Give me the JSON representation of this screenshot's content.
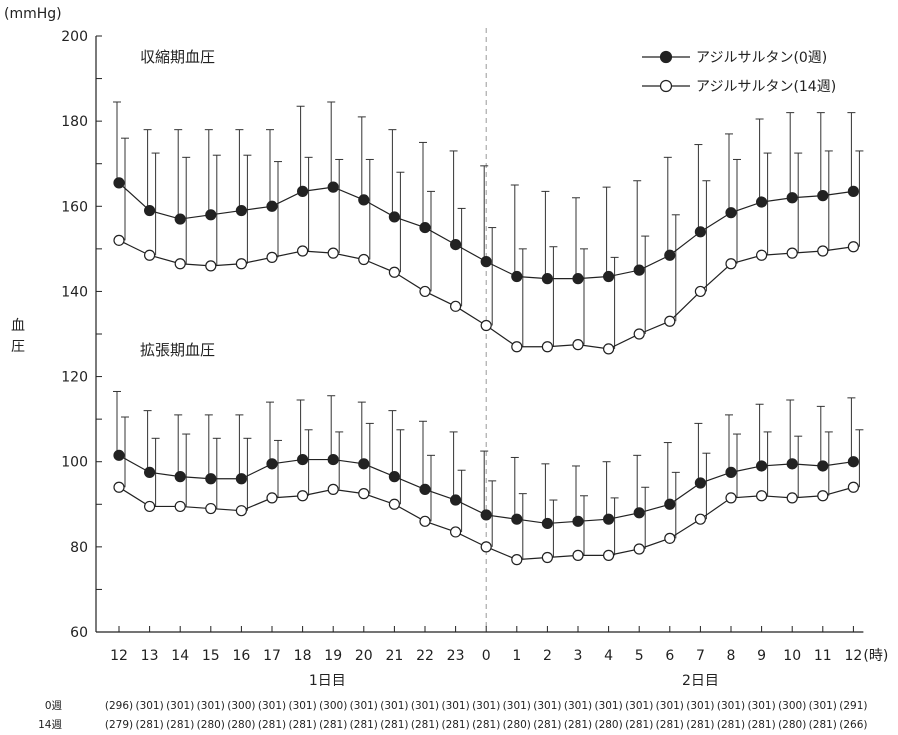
{
  "chart_data": {
    "type": "line",
    "y_unit": "(mmHg)",
    "ylabel": "血圧",
    "ylim": [
      60,
      200
    ],
    "yticks": [
      60,
      80,
      100,
      120,
      140,
      160,
      180,
      200
    ],
    "categories": [
      "12",
      "13",
      "14",
      "15",
      "16",
      "17",
      "18",
      "19",
      "20",
      "21",
      "22",
      "23",
      "0",
      "1",
      "2",
      "3",
      "4",
      "5",
      "6",
      "7",
      "8",
      "9",
      "10",
      "11",
      "12"
    ],
    "x_unit": "(時)",
    "day_labels": [
      "1日目",
      "2日目"
    ],
    "panel_labels": [
      "収縮期血圧",
      "拡張期血圧"
    ],
    "series": [
      {
        "name": "アジルサルタン(0週)",
        "marker": "filled",
        "systolic": [
          165.5,
          159,
          157,
          158,
          159,
          160,
          163.5,
          164.5,
          161.5,
          157.5,
          155,
          151,
          147,
          143.5,
          143,
          143,
          143.5,
          145,
          148.5,
          154,
          158.5,
          161,
          162,
          162.5,
          163.5
        ],
        "systolic_upper_err": [
          184.5,
          178,
          178,
          178,
          178,
          178,
          183.5,
          184.5,
          181,
          178,
          175,
          173,
          169.5,
          165,
          163.5,
          162,
          164.5,
          166,
          171.5,
          174.5,
          177,
          180.5,
          182,
          182,
          182
        ],
        "diastolic": [
          101.5,
          97.5,
          96.5,
          96,
          96,
          99.5,
          100.5,
          100.5,
          99.5,
          96.5,
          93.5,
          91,
          87.5,
          86.5,
          85.5,
          86,
          86.5,
          88,
          90,
          95,
          97.5,
          99,
          99.5,
          99,
          100
        ],
        "diastolic_upper_err": [
          116.5,
          112,
          111,
          111,
          111,
          114,
          114.5,
          115.5,
          114,
          112,
          109.5,
          107,
          102.5,
          101,
          99.5,
          99,
          100,
          101.5,
          104.5,
          109,
          111,
          113.5,
          114.5,
          113,
          115
        ]
      },
      {
        "name": "アジルサルタン(14週)",
        "marker": "open",
        "systolic": [
          152,
          148.5,
          146.5,
          146,
          146.5,
          148,
          149.5,
          149,
          147.5,
          144.5,
          140,
          136.5,
          132,
          127,
          127,
          127.5,
          126.5,
          130,
          133,
          140,
          146.5,
          148.5,
          149,
          149.5,
          150.5
        ],
        "systolic_upper_err": [
          176,
          172.5,
          171.5,
          172,
          172,
          170.5,
          171.5,
          171,
          171,
          168,
          163.5,
          159.5,
          155,
          150,
          150.5,
          150,
          148,
          153,
          158,
          166,
          171,
          172.5,
          172.5,
          173,
          173
        ],
        "diastolic": [
          94,
          89.5,
          89.5,
          89,
          88.5,
          91.5,
          92,
          93.5,
          92.5,
          90,
          86,
          83.5,
          80,
          77,
          77.5,
          78,
          78,
          79.5,
          82,
          86.5,
          91.5,
          92,
          91.5,
          92,
          94
        ],
        "diastolic_upper_err": [
          110.5,
          105.5,
          106.5,
          105.5,
          105.5,
          105,
          107.5,
          107,
          109,
          107.5,
          101.5,
          98,
          95.5,
          92.5,
          91,
          92,
          91.5,
          94,
          97.5,
          102,
          106.5,
          107,
          106,
          107,
          107.5
        ]
      }
    ],
    "legend_position": "top-right",
    "divider_at_category_index": 12,
    "n_rows": [
      {
        "label": "0週",
        "values": [
          "(296)",
          "(301)",
          "(301)",
          "(301)",
          "(300)",
          "(301)",
          "(301)",
          "(300)",
          "(301)",
          "(301)",
          "(301)",
          "(301)",
          "(301)",
          "(301)",
          "(301)",
          "(301)",
          "(301)",
          "(301)",
          "(301)",
          "(301)",
          "(301)",
          "(301)",
          "(300)",
          "(301)",
          "(291)"
        ]
      },
      {
        "label": "14週",
        "values": [
          "(279)",
          "(281)",
          "(281)",
          "(280)",
          "(280)",
          "(281)",
          "(281)",
          "(281)",
          "(281)",
          "(281)",
          "(281)",
          "(281)",
          "(281)",
          "(280)",
          "(281)",
          "(281)",
          "(280)",
          "(281)",
          "(281)",
          "(281)",
          "(281)",
          "(281)",
          "(280)",
          "(281)",
          "(266)"
        ]
      }
    ]
  }
}
